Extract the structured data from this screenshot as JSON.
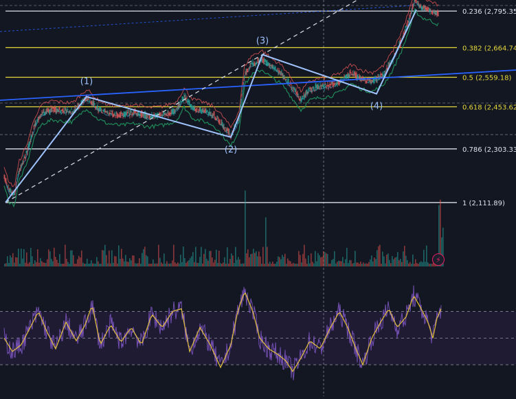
{
  "colors": {
    "background": "#131722",
    "fib_white": "#e0e3eb",
    "fib_yellow": "#e5d83c",
    "elliott": "#9ec3ff",
    "trendline_blue": "#2962ff",
    "dashed_white": "#d1d4dc",
    "price_red": "#e05555",
    "price_green": "#26a69a",
    "band_green": "#1f8a5a",
    "rsi_purple": "#7e57c2",
    "rsi_yellow": "#e5c23c",
    "volume_green": "#26a69a",
    "volume_red": "#ef5350",
    "lightning": "#e91e63"
  },
  "chart_data": [
    {
      "type": "line",
      "panel": "price",
      "fib_levels": [
        {
          "ratio": 0.236,
          "price": 2795.35,
          "label": "0.236 (2,795.35)",
          "color": "white"
        },
        {
          "ratio": 0.382,
          "price": 2664.74,
          "label": "0.382 (2,664.74)",
          "color": "yellow"
        },
        {
          "ratio": 0.5,
          "price": 2559.18,
          "label": "0.5 (2,559.18)",
          "color": "yellow"
        },
        {
          "ratio": 0.618,
          "price": 2453.62,
          "label": "0.618 (2,453.62)",
          "color": "yellow"
        },
        {
          "ratio": 0.786,
          "price": 2303.33,
          "label": "0.786 (2,303.33)",
          "color": "white"
        },
        {
          "ratio": 1,
          "price": 2111.89,
          "label": "1 (2,111.89)",
          "color": "white"
        }
      ],
      "elliott_waves": [
        {
          "label": "",
          "bar": 2,
          "price": 2111.89
        },
        {
          "label": "(1)",
          "bar": 120,
          "price": 2490
        },
        {
          "label": "(2)",
          "bar": 330,
          "price": 2345
        },
        {
          "label": "(3)",
          "bar": 376,
          "price": 2640
        },
        {
          "label": "(4)",
          "bar": 542,
          "price": 2500
        },
        {
          "label": "",
          "bar": 600,
          "price": 2800
        }
      ],
      "price_path": [
        [
          0,
          2205
        ],
        [
          8,
          2150
        ],
        [
          15,
          2140
        ],
        [
          22,
          2230
        ],
        [
          32,
          2280
        ],
        [
          45,
          2390
        ],
        [
          55,
          2430
        ],
        [
          70,
          2445
        ],
        [
          85,
          2440
        ],
        [
          100,
          2438
        ],
        [
          120,
          2487
        ],
        [
          135,
          2450
        ],
        [
          150,
          2432
        ],
        [
          170,
          2425
        ],
        [
          190,
          2432
        ],
        [
          210,
          2420
        ],
        [
          230,
          2425
        ],
        [
          250,
          2440
        ],
        [
          262,
          2490
        ],
        [
          275,
          2450
        ],
        [
          290,
          2440
        ],
        [
          305,
          2425
        ],
        [
          318,
          2390
        ],
        [
          330,
          2350
        ],
        [
          342,
          2410
        ],
        [
          350,
          2570
        ],
        [
          360,
          2605
        ],
        [
          375,
          2625
        ],
        [
          390,
          2595
        ],
        [
          405,
          2570
        ],
        [
          420,
          2520
        ],
        [
          432,
          2480
        ],
        [
          445,
          2515
        ],
        [
          460,
          2525
        ],
        [
          475,
          2530
        ],
        [
          490,
          2545
        ],
        [
          505,
          2575
        ],
        [
          520,
          2555
        ],
        [
          535,
          2545
        ],
        [
          552,
          2570
        ],
        [
          565,
          2620
        ],
        [
          580,
          2700
        ],
        [
          590,
          2770
        ],
        [
          598,
          2835
        ],
        [
          608,
          2810
        ],
        [
          620,
          2800
        ],
        [
          632,
          2785
        ]
      ],
      "x_range": [
        0,
        640
      ],
      "y_range": [
        2070,
        2830
      ]
    },
    {
      "type": "bar",
      "panel": "volume",
      "bar_count": 640,
      "spikes": [
        {
          "bar": 350,
          "value": 0.85
        },
        {
          "bar": 380,
          "value": 0.55
        },
        {
          "bar": 597,
          "value": 0.7
        },
        {
          "bar": 633,
          "value": 1.0
        }
      ]
    },
    {
      "type": "line",
      "panel": "rsi",
      "bands": [
        70,
        50,
        30
      ],
      "y_range": [
        10,
        95
      ],
      "rsi_path": [
        [
          0,
          50
        ],
        [
          12,
          40
        ],
        [
          25,
          45
        ],
        [
          40,
          60
        ],
        [
          50,
          70
        ],
        [
          62,
          55
        ],
        [
          75,
          42
        ],
        [
          90,
          62
        ],
        [
          105,
          48
        ],
        [
          118,
          60
        ],
        [
          128,
          75
        ],
        [
          140,
          45
        ],
        [
          155,
          60
        ],
        [
          170,
          47
        ],
        [
          185,
          58
        ],
        [
          200,
          45
        ],
        [
          215,
          68
        ],
        [
          230,
          58
        ],
        [
          245,
          70
        ],
        [
          258,
          72
        ],
        [
          270,
          40
        ],
        [
          285,
          58
        ],
        [
          300,
          45
        ],
        [
          315,
          28
        ],
        [
          330,
          45
        ],
        [
          340,
          70
        ],
        [
          350,
          85
        ],
        [
          362,
          70
        ],
        [
          372,
          50
        ],
        [
          385,
          42
        ],
        [
          398,
          38
        ],
        [
          410,
          33
        ],
        [
          420,
          25
        ],
        [
          432,
          35
        ],
        [
          445,
          48
        ],
        [
          460,
          42
        ],
        [
          475,
          58
        ],
        [
          488,
          70
        ],
        [
          500,
          58
        ],
        [
          512,
          42
        ],
        [
          522,
          30
        ],
        [
          535,
          50
        ],
        [
          548,
          62
        ],
        [
          560,
          72
        ],
        [
          572,
          58
        ],
        [
          585,
          66
        ],
        [
          596,
          82
        ],
        [
          607,
          72
        ],
        [
          617,
          62
        ],
        [
          624,
          50
        ],
        [
          630,
          65
        ],
        [
          636,
          72
        ]
      ]
    }
  ]
}
